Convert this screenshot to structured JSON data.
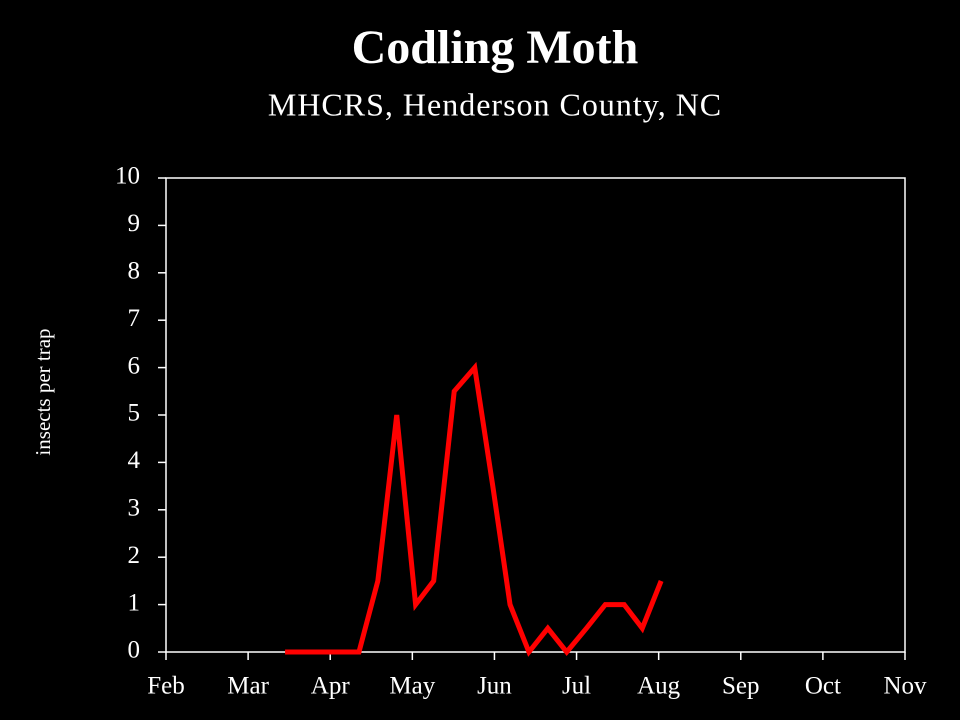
{
  "chart_data": {
    "type": "line",
    "title": "Codling Moth",
    "subtitle": "MHCRS, Henderson County, NC",
    "y_label": "insects per trap",
    "x": [
      1.45,
      1.67,
      1.9,
      2.13,
      2.35,
      2.58,
      2.81,
      3.04,
      3.26,
      3.51,
      3.76,
      3.98,
      4.19,
      4.42,
      4.65,
      4.88,
      5.12,
      5.35,
      5.58,
      5.8,
      6.03
    ],
    "series": [
      {
        "name": "Codling Moth",
        "color": "#ff0000",
        "values": [
          0,
          0,
          0,
          0,
          0,
          1.5,
          5,
          1,
          1.5,
          5.5,
          6,
          3.5,
          1,
          0,
          0.5,
          0,
          0.5,
          1,
          1,
          0.5,
          1.5
        ]
      }
    ],
    "xlim": [
      0,
      9
    ],
    "xticks": [
      {
        "value": 0,
        "label": "Feb"
      },
      {
        "value": 1,
        "label": "Mar"
      },
      {
        "value": 2,
        "label": "Apr"
      },
      {
        "value": 3,
        "label": "May"
      },
      {
        "value": 4,
        "label": "Jun"
      },
      {
        "value": 5,
        "label": "Jul"
      },
      {
        "value": 6,
        "label": "Aug"
      },
      {
        "value": 7,
        "label": "Sep"
      },
      {
        "value": 8,
        "label": "Oct"
      },
      {
        "value": 9,
        "label": "Nov"
      }
    ],
    "ylim": [
      0,
      10
    ],
    "yticks": [
      0,
      1,
      2,
      3,
      4,
      5,
      6,
      7,
      8,
      9,
      10
    ],
    "grid": false
  }
}
